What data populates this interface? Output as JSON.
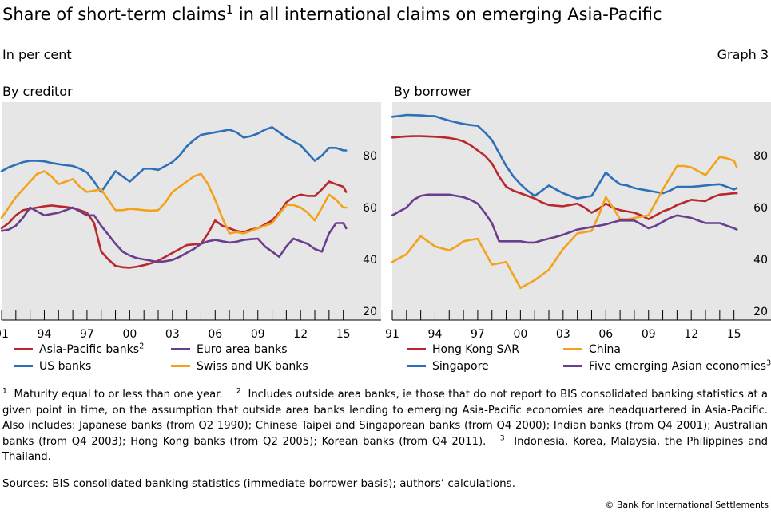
{
  "header": {
    "title": "Share of short-term claims",
    "title_sup": "1",
    "title_rest": " in all international claims on emerging Asia-Pacific",
    "subtitle": "In per cent",
    "graph_number": "Graph 3"
  },
  "chart_data": [
    {
      "type": "line",
      "title": "By creditor",
      "xlim": [
        1991,
        2015.3
      ],
      "ylim": [
        20,
        100
      ],
      "yticks": [
        20,
        40,
        60,
        80
      ],
      "xtick_labels": [
        "91",
        "94",
        "97",
        "00",
        "03",
        "06",
        "09",
        "12",
        "15"
      ],
      "xtick_years": [
        1991,
        1994,
        1997,
        2000,
        2003,
        2006,
        2009,
        2012,
        2015
      ],
      "y_axis_side": "right",
      "background": "#e6e6e6",
      "series": [
        {
          "name": "Asia-Pacific banks",
          "name_sup": "2",
          "color": "#b9282e",
          "x": [
            1991,
            1991.5,
            1992,
            1992.5,
            1993,
            1993.5,
            1994,
            1994.5,
            1995,
            1995.5,
            1996,
            1996.5,
            1997,
            1997.5,
            1998,
            1998.5,
            1999,
            1999.5,
            2000,
            2000.5,
            2001,
            2001.5,
            2002,
            2002.5,
            2003,
            2003.5,
            2004,
            2004.5,
            2005,
            2005.5,
            2006,
            2006.5,
            2007,
            2007.5,
            2008,
            2008.5,
            2009,
            2009.5,
            2010,
            2010.5,
            2011,
            2011.5,
            2012,
            2012.5,
            2013,
            2013.5,
            2014,
            2014.5,
            2015,
            2015.2
          ],
          "y": [
            52,
            54,
            57,
            59,
            59.5,
            60,
            60.5,
            60.8,
            60.5,
            60.2,
            59.8,
            59,
            58,
            54,
            43,
            40,
            37.5,
            37,
            36.8,
            37.2,
            37.8,
            38.5,
            39.5,
            41,
            42.5,
            44,
            45.5,
            45.8,
            46,
            50,
            55,
            53,
            52,
            51,
            50.5,
            51.5,
            52,
            53.5,
            55,
            58,
            62,
            64,
            65,
            64.5,
            64.5,
            67,
            70,
            69,
            68,
            66
          ]
        },
        {
          "name": "US banks",
          "color": "#2e70b8",
          "x": [
            1991,
            1991.5,
            1992,
            1992.5,
            1993,
            1993.5,
            1994,
            1994.5,
            1995,
            1995.5,
            1996,
            1996.5,
            1997,
            1997.5,
            1998,
            1998.5,
            1999,
            1999.5,
            2000,
            2000.5,
            2001,
            2001.5,
            2002,
            2002.5,
            2003,
            2003.5,
            2004,
            2004.5,
            2005,
            2005.5,
            2006,
            2006.5,
            2007,
            2007.5,
            2008,
            2008.5,
            2009,
            2009.5,
            2010,
            2010.5,
            2011,
            2011.5,
            2012,
            2012.5,
            2013,
            2013.5,
            2014,
            2014.5,
            2015,
            2015.2
          ],
          "y": [
            74,
            75.5,
            76.5,
            77.5,
            78,
            78,
            77.8,
            77.2,
            76.7,
            76.3,
            76,
            75,
            73.5,
            70,
            66,
            70,
            74,
            72,
            70,
            72.5,
            75,
            75,
            74.5,
            76,
            77.5,
            80,
            83.5,
            86,
            88,
            88.5,
            89,
            89.5,
            90,
            89,
            87,
            87.5,
            88.5,
            90,
            91,
            89,
            87,
            85.5,
            84,
            81,
            78,
            80,
            83,
            83,
            82,
            82
          ]
        },
        {
          "name": "Euro area banks",
          "color": "#6a3d8f",
          "x": [
            1991,
            1991.5,
            1992,
            1992.5,
            1993,
            1993.5,
            1994,
            1994.5,
            1995,
            1995.5,
            1996,
            1996.5,
            1997,
            1997.5,
            1998,
            1998.5,
            1999,
            1999.5,
            2000,
            2000.5,
            2001,
            2001.5,
            2002,
            2002.5,
            2003,
            2003.5,
            2004,
            2004.5,
            2005,
            2005.5,
            2006,
            2006.5,
            2007,
            2007.5,
            2008,
            2008.5,
            2009,
            2009.5,
            2010,
            2010.5,
            2011,
            2011.5,
            2012,
            2012.5,
            2013,
            2013.5,
            2014,
            2014.5,
            2015,
            2015.2
          ],
          "y": [
            51,
            51.5,
            53,
            56,
            60,
            58.5,
            57,
            57.5,
            58,
            59,
            60,
            58.5,
            57,
            57,
            53,
            49.5,
            46,
            43,
            41.5,
            40.5,
            40,
            39.5,
            39,
            39.3,
            39.8,
            41,
            42.5,
            44,
            46,
            47,
            47.5,
            47,
            46.5,
            46.8,
            47.5,
            47.8,
            48,
            45,
            43,
            41,
            45,
            48,
            47,
            46,
            44,
            43,
            50,
            54,
            54,
            52
          ]
        },
        {
          "name": "Swiss and UK banks",
          "color": "#f2a31b",
          "x": [
            1991,
            1991.5,
            1992,
            1992.5,
            1993,
            1993.5,
            1994,
            1994.5,
            1995,
            1995.5,
            1996,
            1996.5,
            1997,
            1997.5,
            1998,
            1998.5,
            1999,
            1999.5,
            2000,
            2000.5,
            2001,
            2001.5,
            2002,
            2002.5,
            2003,
            2003.5,
            2004,
            2004.5,
            2005,
            2005.5,
            2006,
            2006.5,
            2007,
            2007.5,
            2008,
            2008.5,
            2009,
            2009.5,
            2010,
            2010.5,
            2011,
            2011.5,
            2012,
            2012.5,
            2013,
            2013.5,
            2014,
            2014.5,
            2015,
            2015.2
          ],
          "y": [
            56,
            60,
            64,
            67,
            70,
            73,
            74,
            72,
            69,
            70,
            71,
            68,
            66,
            66.5,
            67,
            63,
            59,
            59,
            59.5,
            59.3,
            59,
            58.8,
            59,
            62,
            66,
            68,
            70,
            72,
            73,
            69,
            63,
            56,
            50,
            50.5,
            50,
            51,
            52,
            53,
            54,
            57.5,
            61,
            61,
            60,
            58,
            55,
            60,
            65,
            63,
            60,
            60
          ]
        }
      ]
    },
    {
      "type": "line",
      "title": "By borrower",
      "xlim": [
        1991,
        2015.3
      ],
      "ylim": [
        20,
        100
      ],
      "yticks": [
        20,
        40,
        60,
        80
      ],
      "xtick_labels": [
        "91",
        "94",
        "97",
        "00",
        "03",
        "06",
        "09",
        "12",
        "15"
      ],
      "xtick_years": [
        1991,
        1994,
        1997,
        2000,
        2003,
        2006,
        2009,
        2012,
        2015
      ],
      "y_axis_side": "right",
      "background": "#e6e6e6",
      "series": [
        {
          "name": "Hong Kong SAR",
          "color": "#b9282e",
          "x": [
            1991,
            1991.5,
            1992,
            1992.5,
            1993,
            1993.5,
            1994,
            1994.5,
            1995,
            1995.5,
            1996,
            1996.5,
            1997,
            1997.5,
            1998,
            1998.5,
            1999,
            1999.5,
            2000,
            2000.5,
            2001,
            2001.5,
            2002,
            2002.5,
            2003,
            2003.5,
            2004,
            2004.5,
            2005,
            2005.5,
            2006,
            2006.5,
            2007,
            2007.5,
            2008,
            2008.5,
            2009,
            2009.5,
            2010,
            2010.5,
            2011,
            2011.5,
            2012,
            2012.5,
            2013,
            2013.5,
            2014,
            2014.5,
            2015,
            2015.2
          ],
          "y": [
            87,
            87.2,
            87.4,
            87.5,
            87.5,
            87.4,
            87.3,
            87.1,
            86.8,
            86.3,
            85.5,
            84,
            82,
            80,
            77,
            72,
            68,
            66.5,
            65.5,
            64.5,
            63.5,
            62,
            61,
            60.7,
            60.5,
            61,
            61.5,
            60,
            58,
            59.5,
            61.5,
            60,
            59,
            58.5,
            58,
            57,
            55.5,
            57,
            58.5,
            59.5,
            61,
            62,
            63,
            62.7,
            62.5,
            64,
            65,
            65.2,
            65.5,
            65.5
          ]
        },
        {
          "name": "Singapore",
          "color": "#2e70b8",
          "x": [
            1991,
            1991.5,
            1992,
            1992.5,
            1993,
            1993.5,
            1994,
            1994.5,
            1995,
            1995.5,
            1996,
            1996.5,
            1997,
            1997.5,
            1998,
            1998.5,
            1999,
            1999.5,
            2000,
            2000.5,
            2001,
            2001.5,
            2002,
            2002.5,
            2003,
            2003.5,
            2004,
            2004.5,
            2005,
            2005.5,
            2006,
            2006.5,
            2007,
            2007.5,
            2008,
            2008.5,
            2009,
            2009.5,
            2010,
            2010.5,
            2011,
            2011.5,
            2012,
            2012.5,
            2013,
            2013.5,
            2014,
            2014.5,
            2015,
            2015.2
          ],
          "y": [
            95,
            95.3,
            95.7,
            95.6,
            95.5,
            95.3,
            95.2,
            94.3,
            93.5,
            92.8,
            92.2,
            91.8,
            91.5,
            89,
            86,
            81,
            76,
            72,
            69,
            66.5,
            64.5,
            66.5,
            68.5,
            67,
            65.5,
            64.5,
            63.5,
            64,
            64.5,
            69,
            73.5,
            71,
            69,
            68.5,
            67.5,
            67,
            66.5,
            66,
            65.5,
            66.5,
            68,
            68,
            68,
            68.2,
            68.5,
            68.8,
            69,
            68,
            67,
            67.5
          ]
        },
        {
          "name": "China",
          "color": "#f2a31b",
          "x": [
            1991,
            1991.5,
            1992,
            1992.5,
            1993,
            1993.5,
            1994,
            1994.5,
            1995,
            1995.5,
            1996,
            1996.5,
            1997,
            1997.5,
            1998,
            1998.5,
            1999,
            1999.5,
            2000,
            2000.5,
            2001,
            2001.5,
            2002,
            2002.5,
            2003,
            2003.5,
            2004,
            2004.5,
            2005,
            2005.5,
            2006,
            2006.5,
            2007,
            2007.5,
            2008,
            2008.5,
            2009,
            2009.5,
            2010,
            2010.5,
            2011,
            2011.5,
            2012,
            2012.5,
            2013,
            2013.5,
            2014,
            2014.5,
            2015,
            2015.2
          ],
          "y": [
            39,
            40.5,
            42,
            45.5,
            49,
            47,
            45,
            44.2,
            43.5,
            45,
            47,
            47.5,
            48,
            43,
            38,
            38.5,
            39,
            34,
            29,
            30.5,
            32,
            34,
            36,
            40,
            44,
            47,
            50,
            50.5,
            51,
            57,
            64,
            60,
            55.5,
            55.5,
            56,
            56.5,
            57,
            62,
            67,
            71.5,
            76,
            76,
            75.5,
            74,
            72.5,
            76,
            79.5,
            79,
            78,
            75.5
          ]
        },
        {
          "name": "Five emerging Asian economies",
          "name_sup": "3",
          "color": "#6a3d8f",
          "x": [
            1991,
            1991.5,
            1992,
            1992.5,
            1993,
            1993.5,
            1994,
            1994.5,
            1995,
            1995.5,
            1996,
            1996.5,
            1997,
            1997.5,
            1998,
            1998.5,
            1999,
            1999.5,
            2000,
            2000.5,
            2001,
            2001.5,
            2002,
            2002.5,
            2003,
            2003.5,
            2004,
            2004.5,
            2005,
            2005.5,
            2006,
            2006.5,
            2007,
            2007.5,
            2008,
            2008.5,
            2009,
            2009.5,
            2010,
            2010.5,
            2011,
            2011.5,
            2012,
            2012.5,
            2013,
            2013.5,
            2014,
            2014.5,
            2015,
            2015.2
          ],
          "y": [
            57,
            58.5,
            60,
            63,
            64.5,
            65,
            65,
            65,
            65,
            64.5,
            64,
            63,
            61.5,
            58,
            54,
            47,
            47,
            47,
            47,
            46.5,
            46.5,
            47.3,
            48,
            48.7,
            49.5,
            50.5,
            51.5,
            52,
            52.5,
            53,
            53.5,
            54.3,
            55,
            55,
            55,
            53.5,
            52,
            53,
            54.5,
            56,
            57,
            56.5,
            56,
            55,
            54,
            54,
            54,
            53,
            52,
            51.5
          ]
        }
      ]
    }
  ],
  "legends": {
    "left": [
      "Asia-Pacific banks",
      "Euro area banks",
      "US banks",
      "Swiss and UK banks"
    ],
    "right": [
      "Hong Kong SAR",
      "China",
      "Singapore",
      "Five emerging Asian economies"
    ]
  },
  "footnotes": {
    "fn1_mark": "1",
    "fn1_text": "Maturity equal to or less than one year.",
    "fn2_mark": "2",
    "fn2_text": "Includes outside area banks, ie those that do not report to BIS consolidated banking statistics at a given point in time, on the assumption that outside area banks lending to emerging Asia-Pacific economies are headquartered in Asia-Pacific. Also includes: Japanese banks (from Q2 1990); Chinese Taipei and Singaporean banks (from Q4 2000); Indian banks (from Q4 2001); Australian banks (from Q4 2003); Hong Kong banks (from Q2 2005); Korean banks (from Q4 2011).",
    "fn3_mark": "3",
    "fn3_text": "Indonesia, Korea, Malaysia, the Philippines and Thailand."
  },
  "sources": "Sources: BIS consolidated banking statistics (immediate borrower basis); authors’ calculations.",
  "copyright": "© Bank for International Settlements"
}
